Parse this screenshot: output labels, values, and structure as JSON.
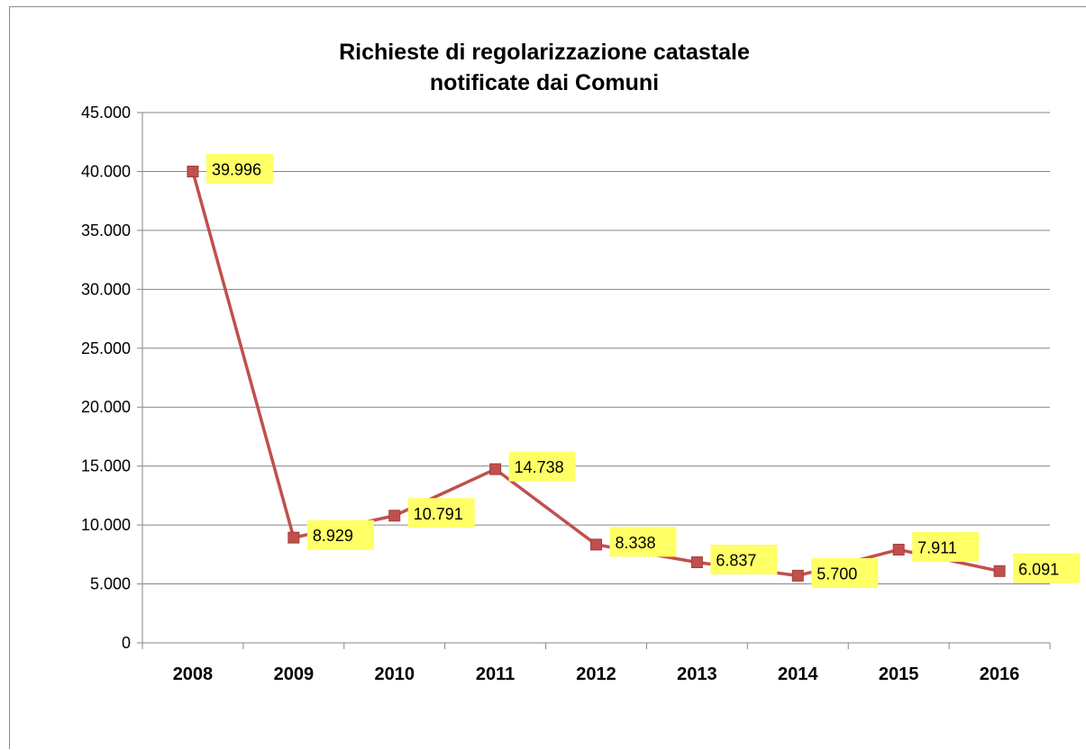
{
  "chart_data": {
    "type": "line",
    "title": [
      "Richieste di regolarizzazione catastale",
      "notificate dai Comuni"
    ],
    "categories": [
      "2008",
      "2009",
      "2010",
      "2011",
      "2012",
      "2013",
      "2014",
      "2015",
      "2016"
    ],
    "series": [
      {
        "values": [
          39996,
          8929,
          10791,
          14738,
          8338,
          6837,
          5700,
          7911,
          6091
        ],
        "labels": [
          "39.996",
          "8.929",
          "10.791",
          "14.738",
          "8.338",
          "6.837",
          "5.700",
          "7.911",
          "6.091"
        ],
        "color": "#c0504d"
      }
    ],
    "yticks": [
      0,
      5000,
      10000,
      15000,
      20000,
      25000,
      30000,
      35000,
      40000,
      45000
    ],
    "ytick_labels": [
      "0",
      "5.000",
      "10.000",
      "15.000",
      "20.000",
      "25.000",
      "30.000",
      "35.000",
      "40.000",
      "45.000"
    ],
    "ylim": [
      0,
      45000
    ],
    "xlabel": "",
    "ylabel": "",
    "grid": true,
    "legend": "none",
    "label_highlight_color": "#ffff66",
    "gridline_color": "#868686"
  }
}
